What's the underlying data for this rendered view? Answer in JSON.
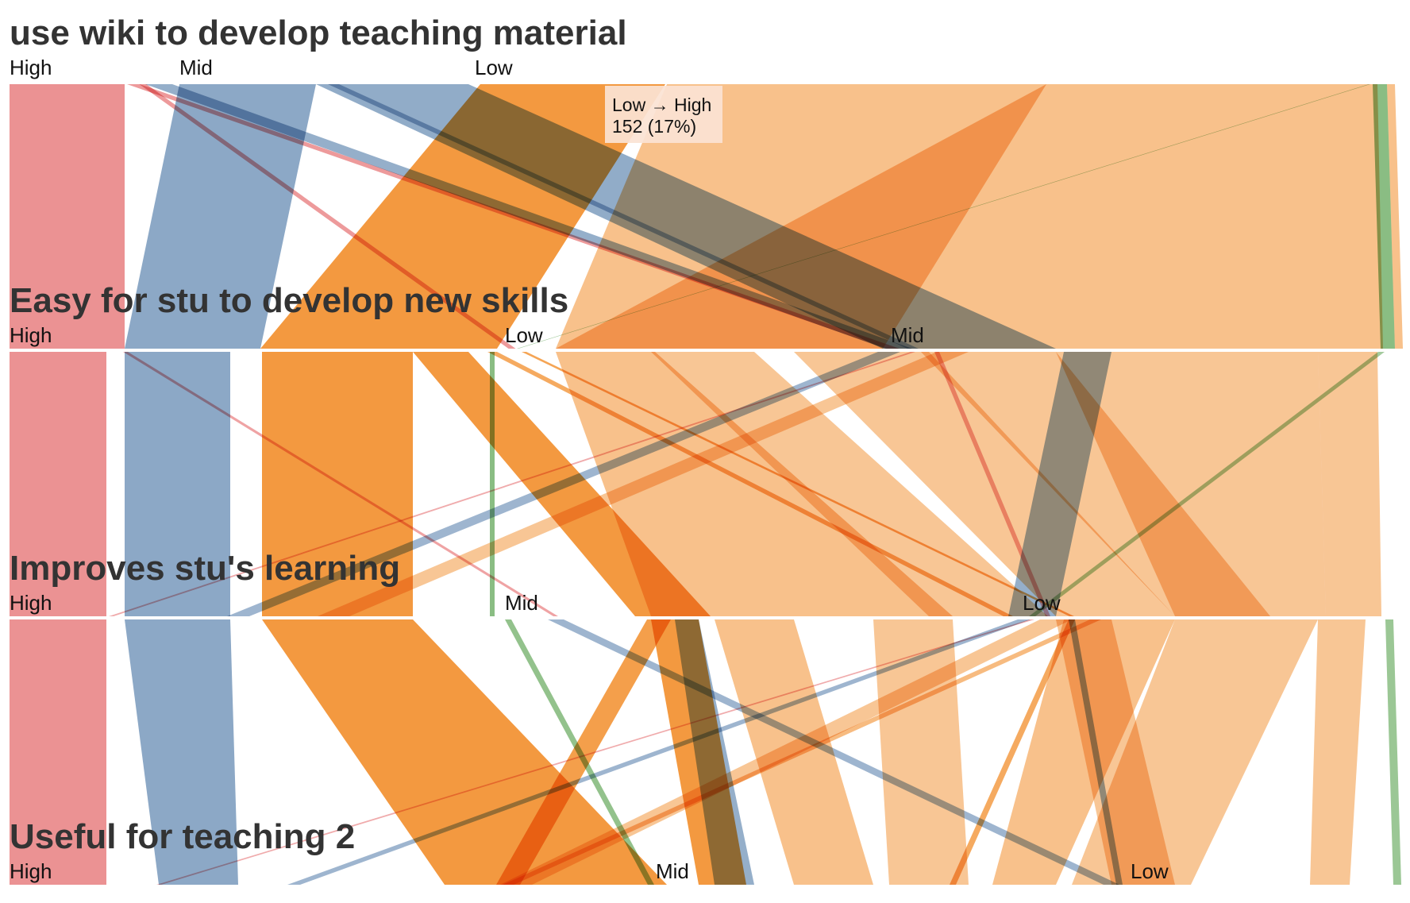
{
  "chart_data": {
    "type": "parallel-sets",
    "dimensions": [
      {
        "title": "use wiki to develop teaching material",
        "categories": [
          "High",
          "Mid",
          "Low",
          ""
        ]
      },
      {
        "title": "Easy for stu to develop new skills",
        "categories": [
          "High",
          "Low",
          "Mid",
          ""
        ]
      },
      {
        "title": "Improves stu's learning",
        "categories": [
          "High",
          "Mid",
          "Low",
          ""
        ]
      },
      {
        "title": "Useful for teaching 2",
        "categories": [
          "High",
          "Mid",
          "Low",
          ""
        ]
      }
    ],
    "colors": {
      "High": "#e15759",
      "Mid": "#4e79a7",
      "Low": "#f28e2b",
      "Other": "#59a14f"
    },
    "tooltip": {
      "path": "Low → High",
      "value": "152 (17%)"
    }
  }
}
